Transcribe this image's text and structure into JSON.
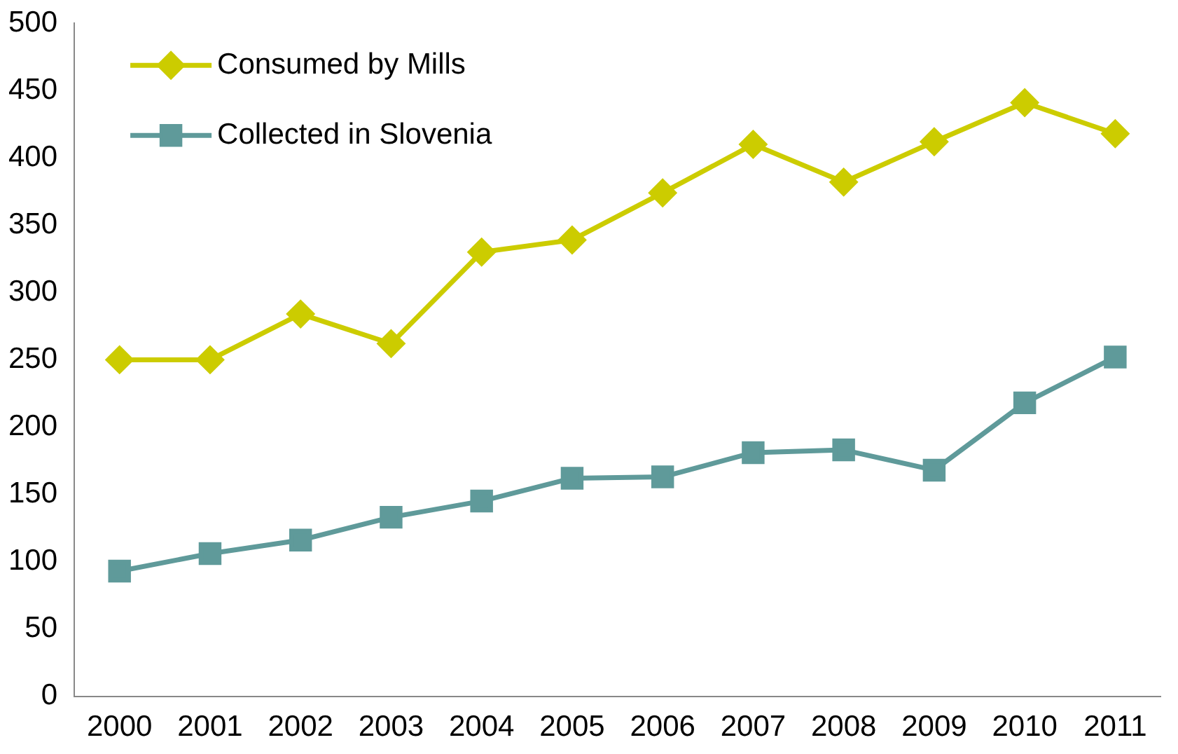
{
  "chart_data": {
    "type": "line",
    "categories": [
      "2000",
      "2001",
      "2002",
      "2003",
      "2004",
      "2005",
      "2006",
      "2007",
      "2008",
      "2009",
      "2010",
      "2011"
    ],
    "series": [
      {
        "name": "Consumed by Mills",
        "color": "#cccc00",
        "marker": "diamond",
        "values": [
          250,
          250,
          284,
          262,
          330,
          339,
          374,
          410,
          382,
          412,
          441,
          418
        ]
      },
      {
        "name": "Collected in Slovenia",
        "color": "#5f9a9a",
        "marker": "square",
        "values": [
          93,
          106,
          116,
          133,
          145,
          162,
          163,
          181,
          183,
          168,
          218,
          252
        ]
      }
    ],
    "ylim": [
      0,
      500
    ],
    "yticks": [
      0,
      50,
      100,
      150,
      200,
      250,
      300,
      350,
      400,
      450,
      500
    ],
    "grid": false,
    "legend": "top left"
  }
}
